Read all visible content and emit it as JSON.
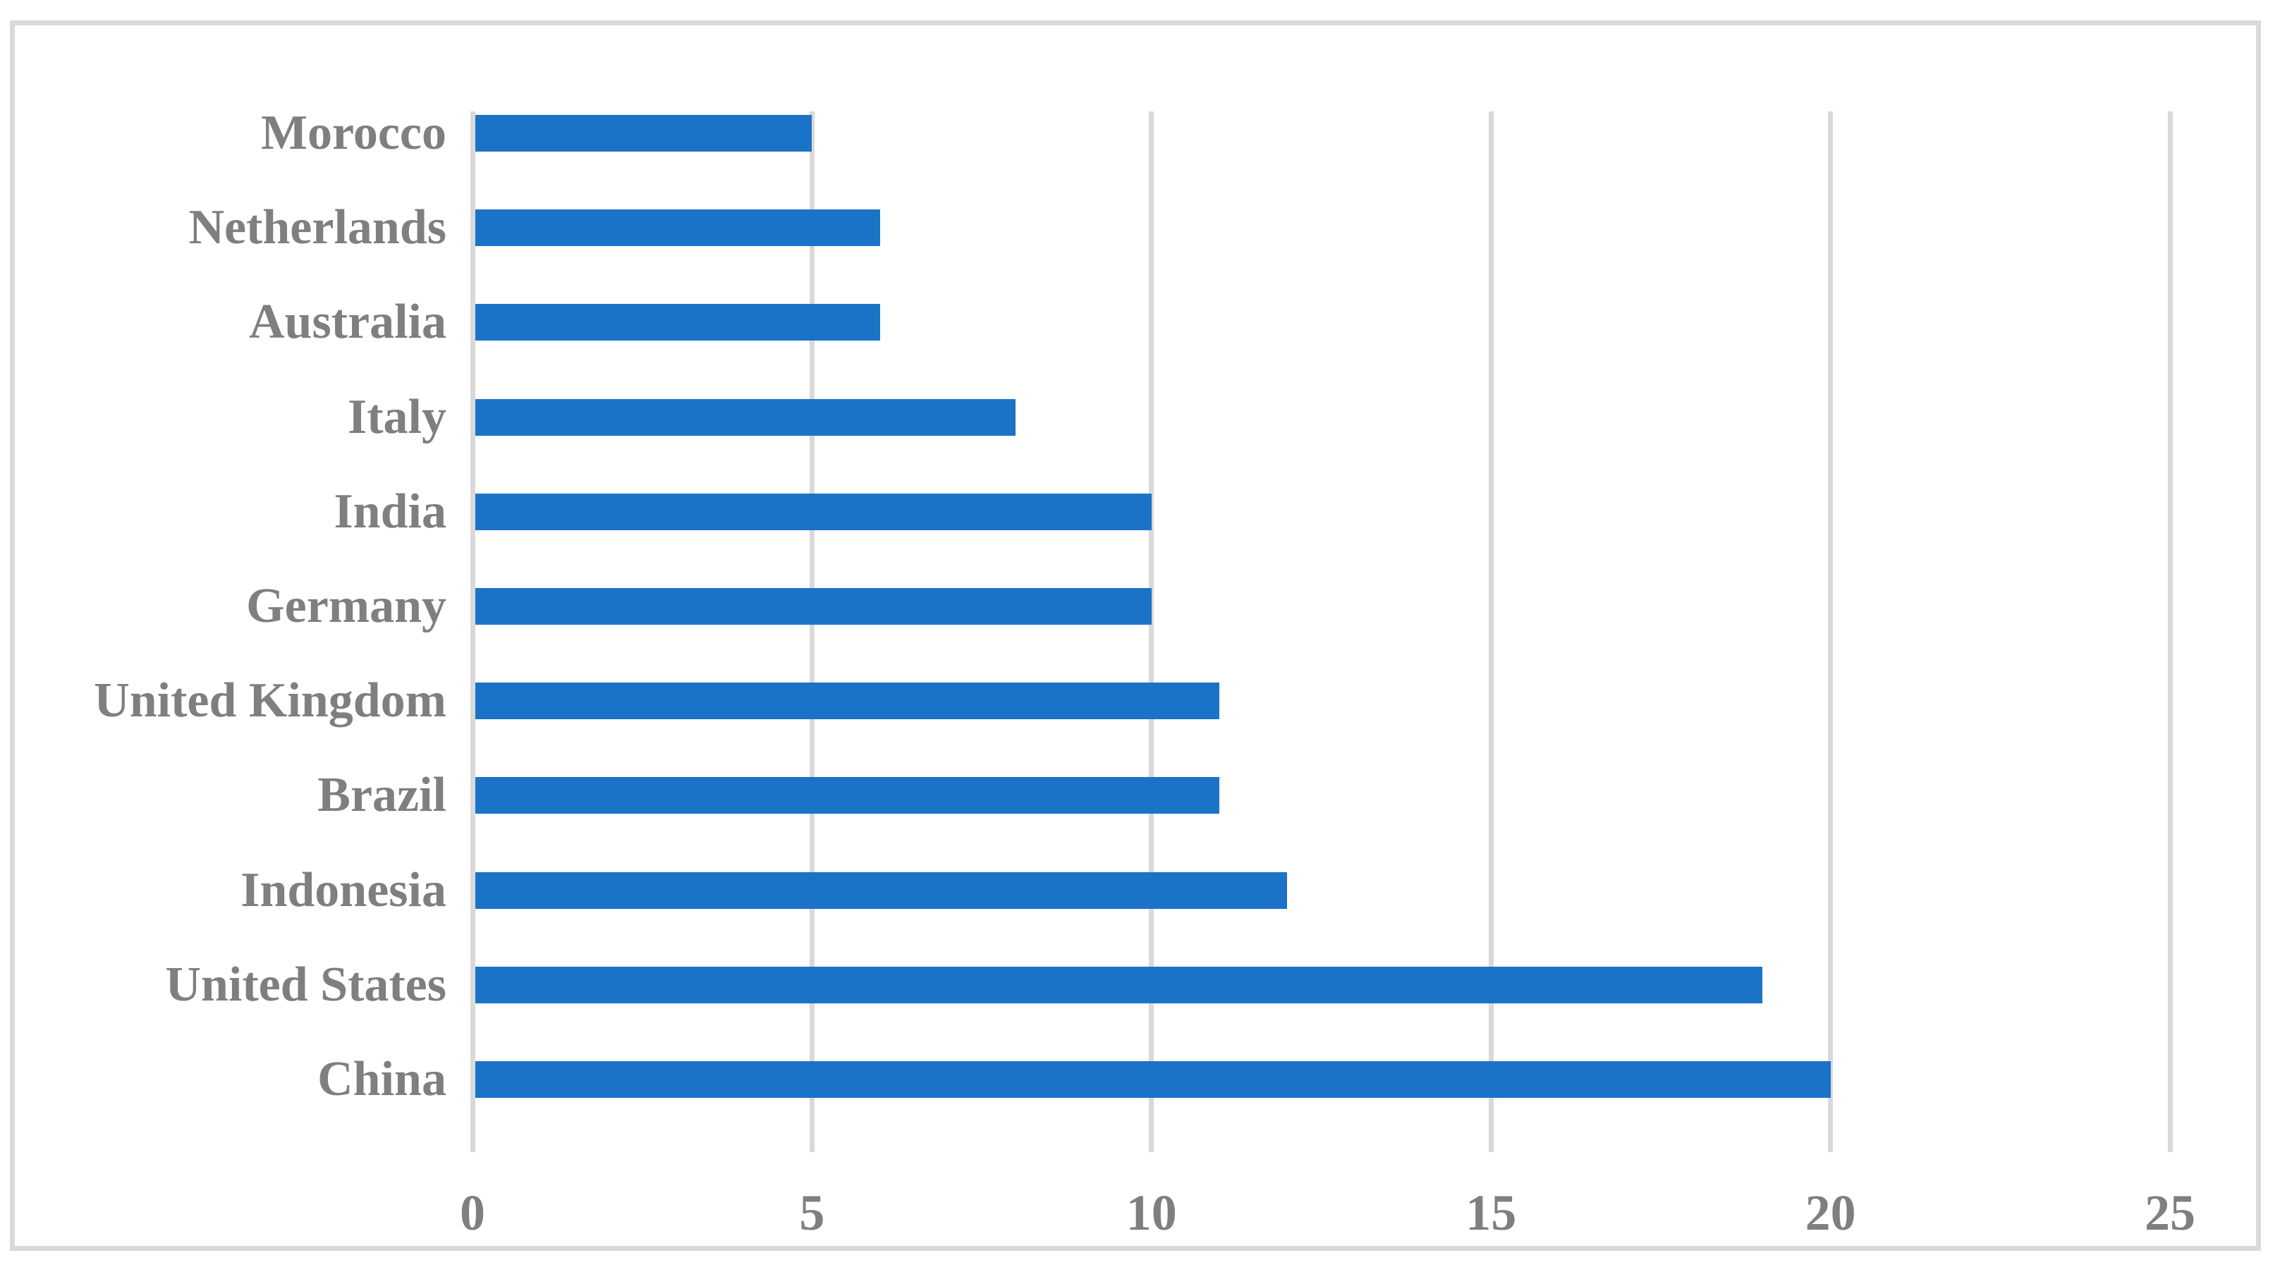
{
  "chart_data": {
    "type": "bar",
    "orientation": "horizontal",
    "title": "",
    "xlabel": "",
    "ylabel": "",
    "categories_top_to_bottom": [
      "Morocco",
      "Netherlands",
      "Australia",
      "Italy",
      "India",
      "Germany",
      "United Kingdom",
      "Brazil",
      "Indonesia",
      "United States",
      "China"
    ],
    "values": [
      5,
      6,
      6,
      8,
      10,
      10,
      11,
      11,
      12,
      19,
      20
    ],
    "x_ticks": [
      0,
      5,
      10,
      15,
      20,
      25
    ],
    "xlim": [
      0,
      25
    ],
    "grid": "vertical-only",
    "legend": "none",
    "data_labels": "none",
    "colors": {
      "bar": "#1B73C8",
      "gridline": "#D9D9D9",
      "frame_border": "#D9D9D9",
      "label_text": "#7F7F7F",
      "background": "#FFFFFF"
    }
  }
}
